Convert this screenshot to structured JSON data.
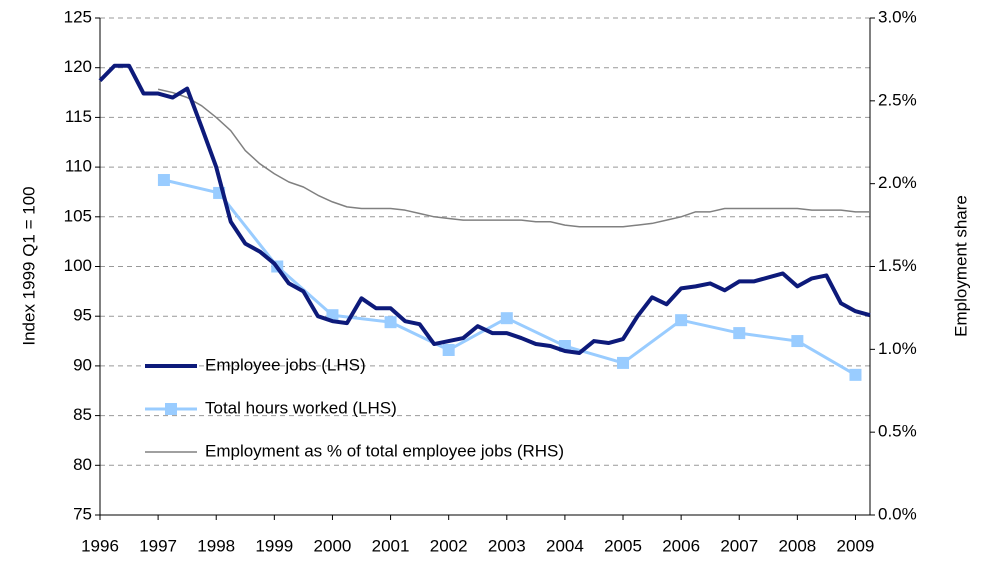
{
  "chart_data": {
    "type": "line",
    "ylabel": "Index 1999 Q1 = 100",
    "y2label": "Employment share",
    "xlim": [
      1996,
      2009.25
    ],
    "xticks": [
      1996,
      1997,
      1998,
      1999,
      2000,
      2001,
      2002,
      2003,
      2004,
      2005,
      2006,
      2007,
      2008,
      2009
    ],
    "ylim": [
      75,
      125
    ],
    "yticks": [
      75,
      80,
      85,
      90,
      95,
      100,
      105,
      110,
      115,
      120,
      125
    ],
    "y2lim": [
      0,
      3
    ],
    "y2ticks": [
      {
        "value": 0,
        "label": "0.0%"
      },
      {
        "value": 0.5,
        "label": "0.5%"
      },
      {
        "value": 1,
        "label": "1.0%"
      },
      {
        "value": 1.5,
        "label": "1.5%"
      },
      {
        "value": 2,
        "label": "2.0%"
      },
      {
        "value": 2.5,
        "label": "2.5%"
      },
      {
        "value": 3,
        "label": "3.0%"
      }
    ],
    "grid": true,
    "legend": "lower left",
    "series": [
      {
        "name": "Employee jobs (LHS)",
        "color": "#0d1a7a",
        "width": 4,
        "marker": false,
        "x": [
          1996,
          1996.25,
          1996.5,
          1996.75,
          1997,
          1997.25,
          1997.5,
          1997.75,
          1998,
          1998.25,
          1998.5,
          1998.75,
          1999,
          1999.25,
          1999.5,
          1999.75,
          2000,
          2000.25,
          2000.5,
          2000.75,
          2001,
          2001.25,
          2001.5,
          2001.75,
          2002,
          2002.25,
          2002.5,
          2002.75,
          2003,
          2003.25,
          2003.5,
          2003.75,
          2004,
          2004.25,
          2004.5,
          2004.75,
          2005,
          2005.25,
          2005.5,
          2005.75,
          2006,
          2006.25,
          2006.5,
          2006.75,
          2007,
          2007.25,
          2007.5,
          2007.75,
          2008,
          2008.25,
          2008.5,
          2008.75,
          2009,
          2009.25
        ],
        "values": [
          118.7,
          120.2,
          120.2,
          117.4,
          117.4,
          117.0,
          117.9,
          114.0,
          110.0,
          104.5,
          102.3,
          101.5,
          100.3,
          98.3,
          97.5,
          95.0,
          94.5,
          94.3,
          96.8,
          95.8,
          95.8,
          94.5,
          94.2,
          92.2,
          92.5,
          92.8,
          94.0,
          93.3,
          93.3,
          92.8,
          92.2,
          92.0,
          91.5,
          91.3,
          92.5,
          92.3,
          92.7,
          95.0,
          96.9,
          96.2,
          97.8,
          98.0,
          98.3,
          97.6,
          98.5,
          98.5,
          98.9,
          99.3,
          98.0,
          98.8,
          99.1,
          96.3,
          95.5,
          95.1
        ]
      },
      {
        "name": "Total hours worked (LHS)",
        "color": "#99ccff",
        "width": 3,
        "marker": true,
        "x": [
          1997.1,
          1998.05,
          1999.05,
          2000,
          2001,
          2002,
          2003,
          2004,
          2005,
          2006,
          2007,
          2008,
          2009
        ],
        "values": [
          108.7,
          107.4,
          100.0,
          95.1,
          94.4,
          91.6,
          94.8,
          92.0,
          90.3,
          94.6,
          93.3,
          92.5,
          89.1
        ]
      },
      {
        "name": "Employment as % of total employee jobs (RHS)",
        "color": "#808080",
        "width": 1.5,
        "marker": false,
        "axis": "y2",
        "x": [
          1997,
          1997.25,
          1997.5,
          1997.75,
          1998,
          1998.25,
          1998.5,
          1998.75,
          1999,
          1999.25,
          1999.5,
          1999.75,
          2000,
          2000.25,
          2000.5,
          2000.75,
          2001,
          2001.25,
          2001.5,
          2001.75,
          2002,
          2002.25,
          2002.5,
          2002.75,
          2003,
          2003.25,
          2003.5,
          2003.75,
          2004,
          2004.25,
          2004.5,
          2004.75,
          2005,
          2005.25,
          2005.5,
          2005.75,
          2006,
          2006.25,
          2006.5,
          2006.75,
          2007,
          2007.25,
          2007.5,
          2007.75,
          2008,
          2008.25,
          2008.5,
          2008.75,
          2009,
          2009.25
        ],
        "values": [
          2.57,
          2.55,
          2.52,
          2.47,
          2.4,
          2.32,
          2.2,
          2.12,
          2.06,
          2.01,
          1.98,
          1.93,
          1.89,
          1.86,
          1.85,
          1.85,
          1.85,
          1.84,
          1.82,
          1.8,
          1.79,
          1.78,
          1.78,
          1.78,
          1.78,
          1.78,
          1.77,
          1.77,
          1.75,
          1.74,
          1.74,
          1.74,
          1.74,
          1.75,
          1.76,
          1.78,
          1.8,
          1.83,
          1.83,
          1.85,
          1.85,
          1.85,
          1.85,
          1.85,
          1.85,
          1.84,
          1.84,
          1.84,
          1.83,
          1.83
        ]
      }
    ]
  }
}
